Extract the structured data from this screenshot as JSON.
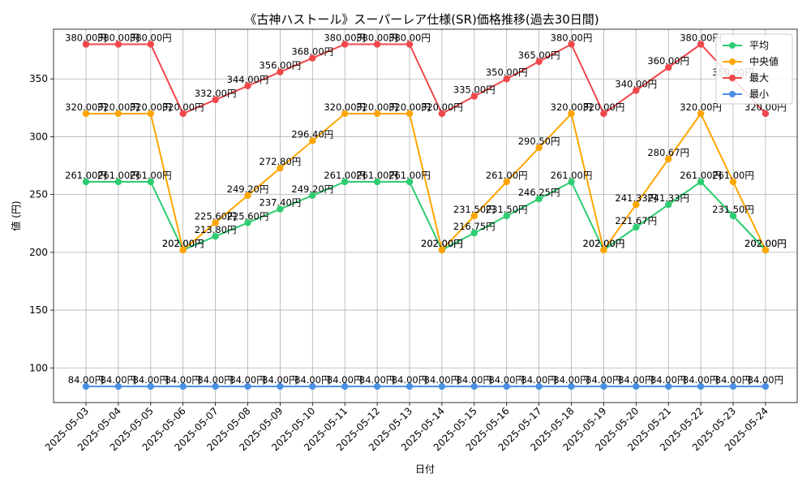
{
  "chart_data": {
    "type": "line",
    "title": "《古神ハストール》スーパーレア仕様(SR)価格推移(過去30日間)",
    "xlabel": "日付",
    "ylabel": "値 (円)",
    "ylim": [
      70,
      393
    ],
    "yticks": [
      100,
      150,
      200,
      250,
      300,
      350
    ],
    "grid": true,
    "legend_position": "top-right",
    "value_suffix": "円",
    "categories": [
      "2025-05-03",
      "2025-05-04",
      "2025-05-05",
      "2025-05-06",
      "2025-05-07",
      "2025-05-08",
      "2025-05-09",
      "2025-05-10",
      "2025-05-11",
      "2025-05-12",
      "2025-05-13",
      "2025-05-14",
      "2025-05-15",
      "2025-05-16",
      "2025-05-17",
      "2025-05-18",
      "2025-05-19",
      "2025-05-20",
      "2025-05-21",
      "2025-05-22",
      "2025-05-23",
      "2025-05-24"
    ],
    "series": [
      {
        "name": "平均",
        "color": "#2ecc71",
        "values": [
          261.0,
          261.0,
          261.0,
          202.0,
          213.8,
          225.6,
          237.4,
          249.2,
          261.0,
          261.0,
          261.0,
          202.0,
          216.75,
          231.5,
          246.25,
          261.0,
          202.0,
          221.67,
          241.33,
          261.0,
          231.5,
          202.0
        ]
      },
      {
        "name": "中央値",
        "color": "#ffa500",
        "values": [
          320.0,
          320.0,
          320.0,
          202.0,
          225.6,
          249.2,
          272.8,
          296.4,
          320.0,
          320.0,
          320.0,
          202.0,
          231.5,
          261.0,
          290.5,
          320.0,
          202.0,
          241.33,
          280.67,
          320.0,
          261.0,
          202.0
        ]
      },
      {
        "name": "最大",
        "color": "#f0474b",
        "values": [
          380.0,
          380.0,
          380.0,
          320.0,
          332.0,
          344.0,
          356.0,
          368.0,
          380.0,
          380.0,
          380.0,
          320.0,
          335.0,
          350.0,
          365.0,
          380.0,
          320.0,
          340.0,
          360.0,
          380.0,
          350.0,
          320.0
        ]
      },
      {
        "name": "最小",
        "color": "#4a90e2",
        "values": [
          84.0,
          84.0,
          84.0,
          84.0,
          84.0,
          84.0,
          84.0,
          84.0,
          84.0,
          84.0,
          84.0,
          84.0,
          84.0,
          84.0,
          84.0,
          84.0,
          84.0,
          84.0,
          84.0,
          84.0,
          84.0,
          84.0
        ]
      }
    ]
  }
}
